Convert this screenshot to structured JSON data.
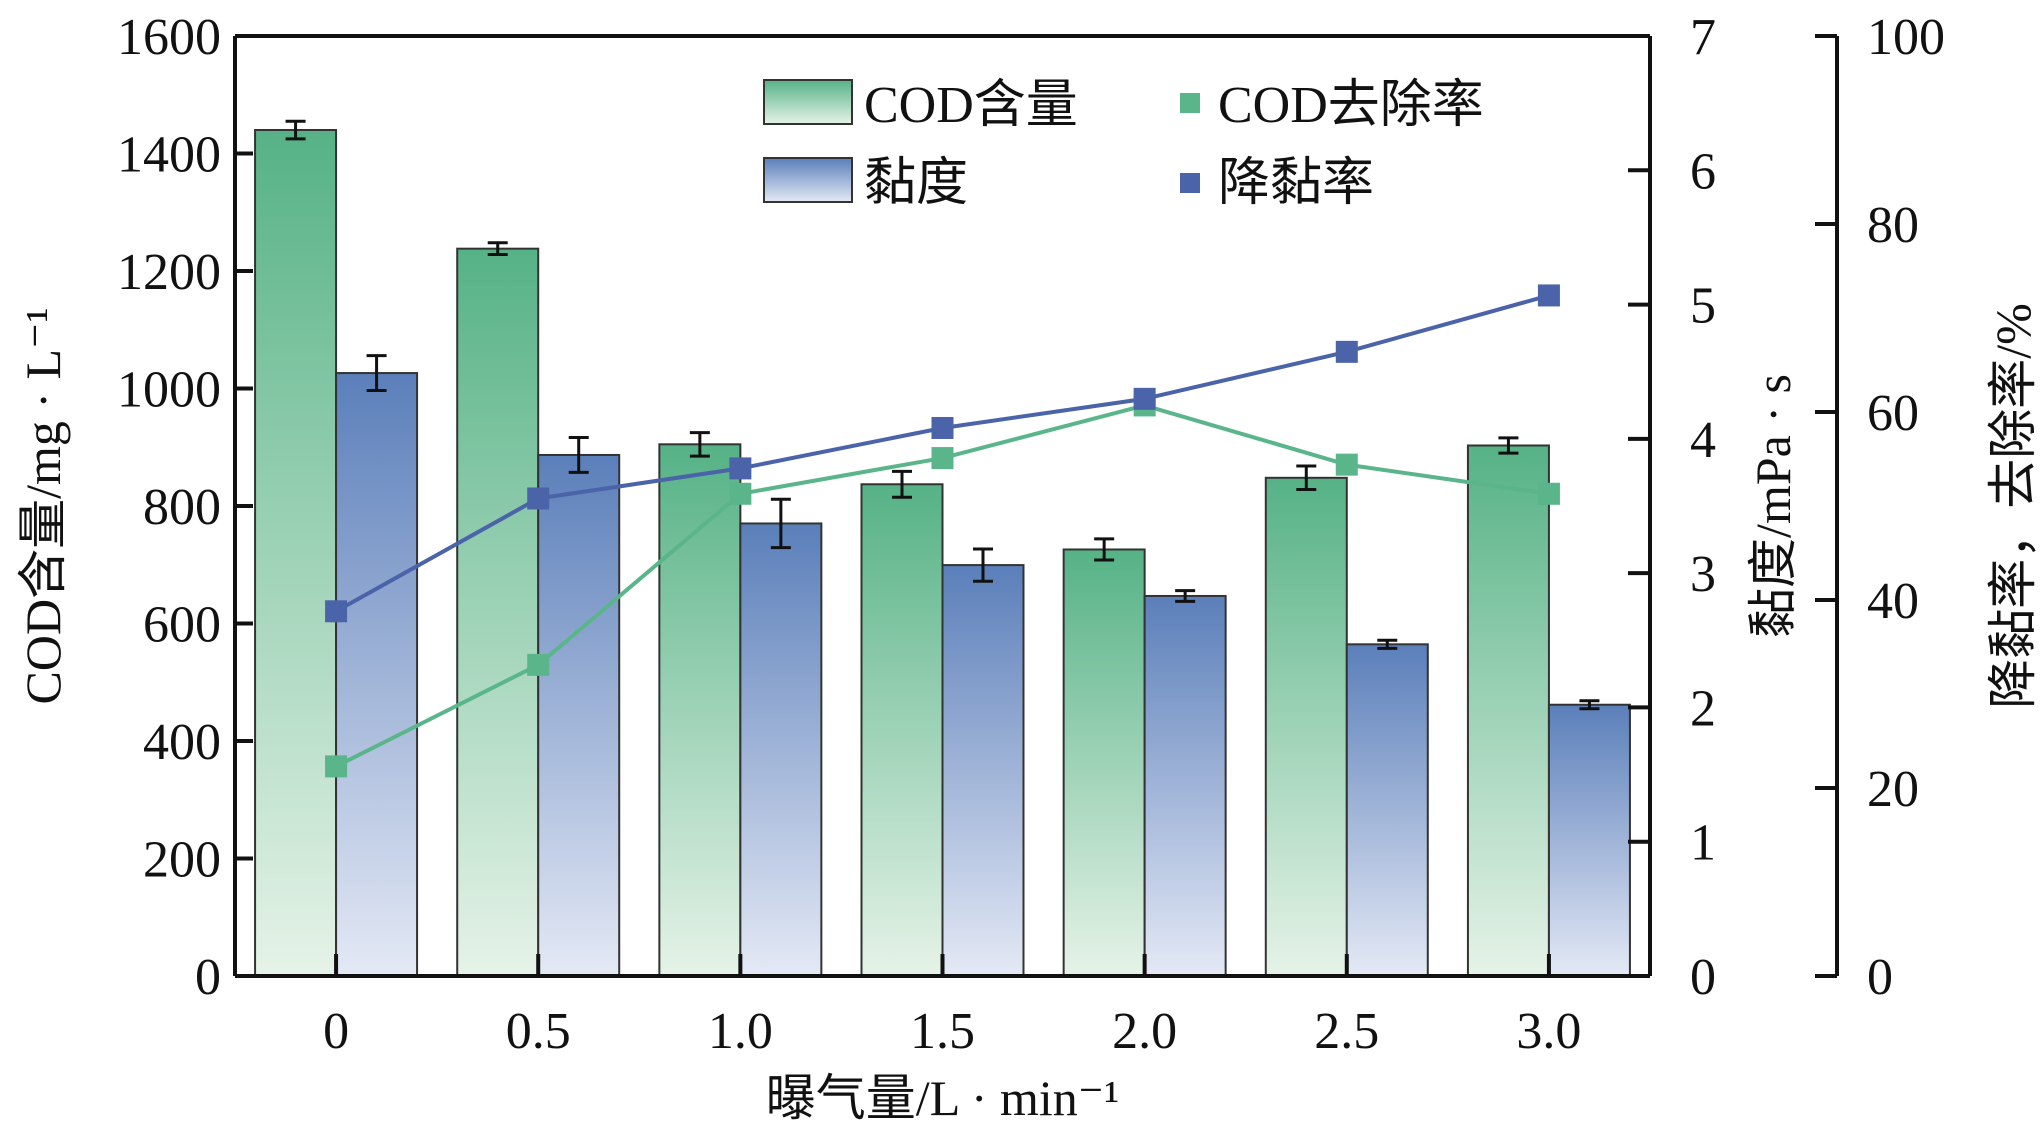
{
  "chart_data": {
    "type": "bar",
    "title": "",
    "xlabel": "曝气量/L · min⁻¹",
    "ylabel_left": "COD含量/mg · L⁻¹",
    "ylabel_right1": "黏度/mPa · s",
    "ylabel_right2": "降黏率，去除率/%",
    "categories": [
      "0",
      "0.5",
      "1.0",
      "1.5",
      "2.0",
      "2.5",
      "3.0"
    ],
    "axes": {
      "left": {
        "range": [
          0,
          1600
        ],
        "ticks": [
          "0",
          "200",
          "400",
          "600",
          "800",
          "1000",
          "1200",
          "1400",
          "1600"
        ]
      },
      "right1": {
        "range": [
          0,
          7
        ],
        "ticks": [
          "0",
          "1",
          "2",
          "3",
          "4",
          "5",
          "6",
          "7"
        ]
      },
      "right2": {
        "range": [
          0,
          100
        ],
        "ticks": [
          "0",
          "20",
          "40",
          "60",
          "80",
          "100"
        ]
      }
    },
    "grid": false,
    "legend_position": "top-right",
    "series": [
      {
        "name": "COD含量",
        "kind": "bar",
        "axis": "left",
        "color": "#5ab58a",
        "values": [
          1440,
          1238,
          905,
          837,
          726,
          848,
          903
        ],
        "errors": [
          15,
          10,
          20,
          22,
          18,
          20,
          13
        ]
      },
      {
        "name": "黏度",
        "kind": "bar",
        "axis": "right1",
        "color": "#5a80bb",
        "values": [
          4.49,
          3.88,
          3.37,
          3.06,
          2.83,
          2.47,
          2.02
        ],
        "errors": [
          0.13,
          0.13,
          0.18,
          0.12,
          0.04,
          0.03,
          0.03
        ]
      },
      {
        "name": "COD去除率",
        "kind": "line",
        "axis": "right2",
        "color": "#5ab58a",
        "values": [
          22.3,
          33.1,
          51.3,
          55.1,
          60.7,
          54.4,
          51.3
        ]
      },
      {
        "name": "降黏率",
        "kind": "line",
        "axis": "right2",
        "color": "#4b63a8",
        "values": [
          38.8,
          50.8,
          54.0,
          58.3,
          61.4,
          66.4,
          72.4
        ]
      }
    ]
  }
}
